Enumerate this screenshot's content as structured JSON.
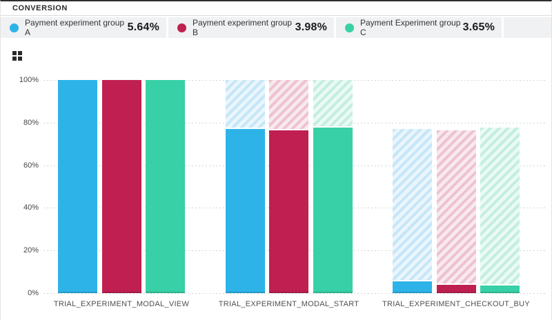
{
  "header": {
    "title": "CONVERSION"
  },
  "legend": [
    {
      "label": "Payment experiment group A",
      "value": "5.64%",
      "color": "#2DB3E8"
    },
    {
      "label": "Payment experiment group B",
      "value": "3.98%",
      "color": "#BF2051"
    },
    {
      "label": "Payment Experiment group C",
      "value": "3.65%",
      "color": "#38D0A6"
    }
  ],
  "chart_data": {
    "type": "bar",
    "subtype": "funnel-with-ghost-carryover",
    "title": "CONVERSION",
    "categories": [
      "TRIAL_EXPERIMENT_MODAL_VIEW",
      "TRIAL_EXPERIMENT_MODAL_START",
      "TRIAL_EXPERIMENT_CHECKOUT_BUY"
    ],
    "series": [
      {
        "name": "Payment experiment group A",
        "overall_conversion": "5.64%",
        "color": "#2DB3E8",
        "hatch_colors": [
          "#C5E6F8",
          "#EAF6FC"
        ],
        "solid_pct": [
          100,
          77.0,
          5.64
        ],
        "hatch_top_pct": [
          100,
          100,
          77.0
        ]
      },
      {
        "name": "Payment experiment group B",
        "overall_conversion": "3.98%",
        "color": "#BF2051",
        "hatch_colors": [
          "#EDC2D1",
          "#F8E9EE"
        ],
        "solid_pct": [
          100,
          76.5,
          3.98
        ],
        "hatch_top_pct": [
          100,
          100,
          76.5
        ]
      },
      {
        "name": "Payment Experiment group C",
        "overall_conversion": "3.65%",
        "color": "#38D0A6",
        "hatch_colors": [
          "#C4EEDF",
          "#EAFAF4"
        ],
        "solid_pct": [
          100,
          77.8,
          3.65
        ],
        "hatch_top_pct": [
          100,
          100,
          77.8
        ]
      }
    ],
    "yticks": [
      "100%",
      "80%",
      "60%",
      "40%",
      "20%",
      "0%"
    ],
    "ylim": [
      0,
      100
    ],
    "grid": "horizontal-dotted",
    "legend_position": "top"
  }
}
